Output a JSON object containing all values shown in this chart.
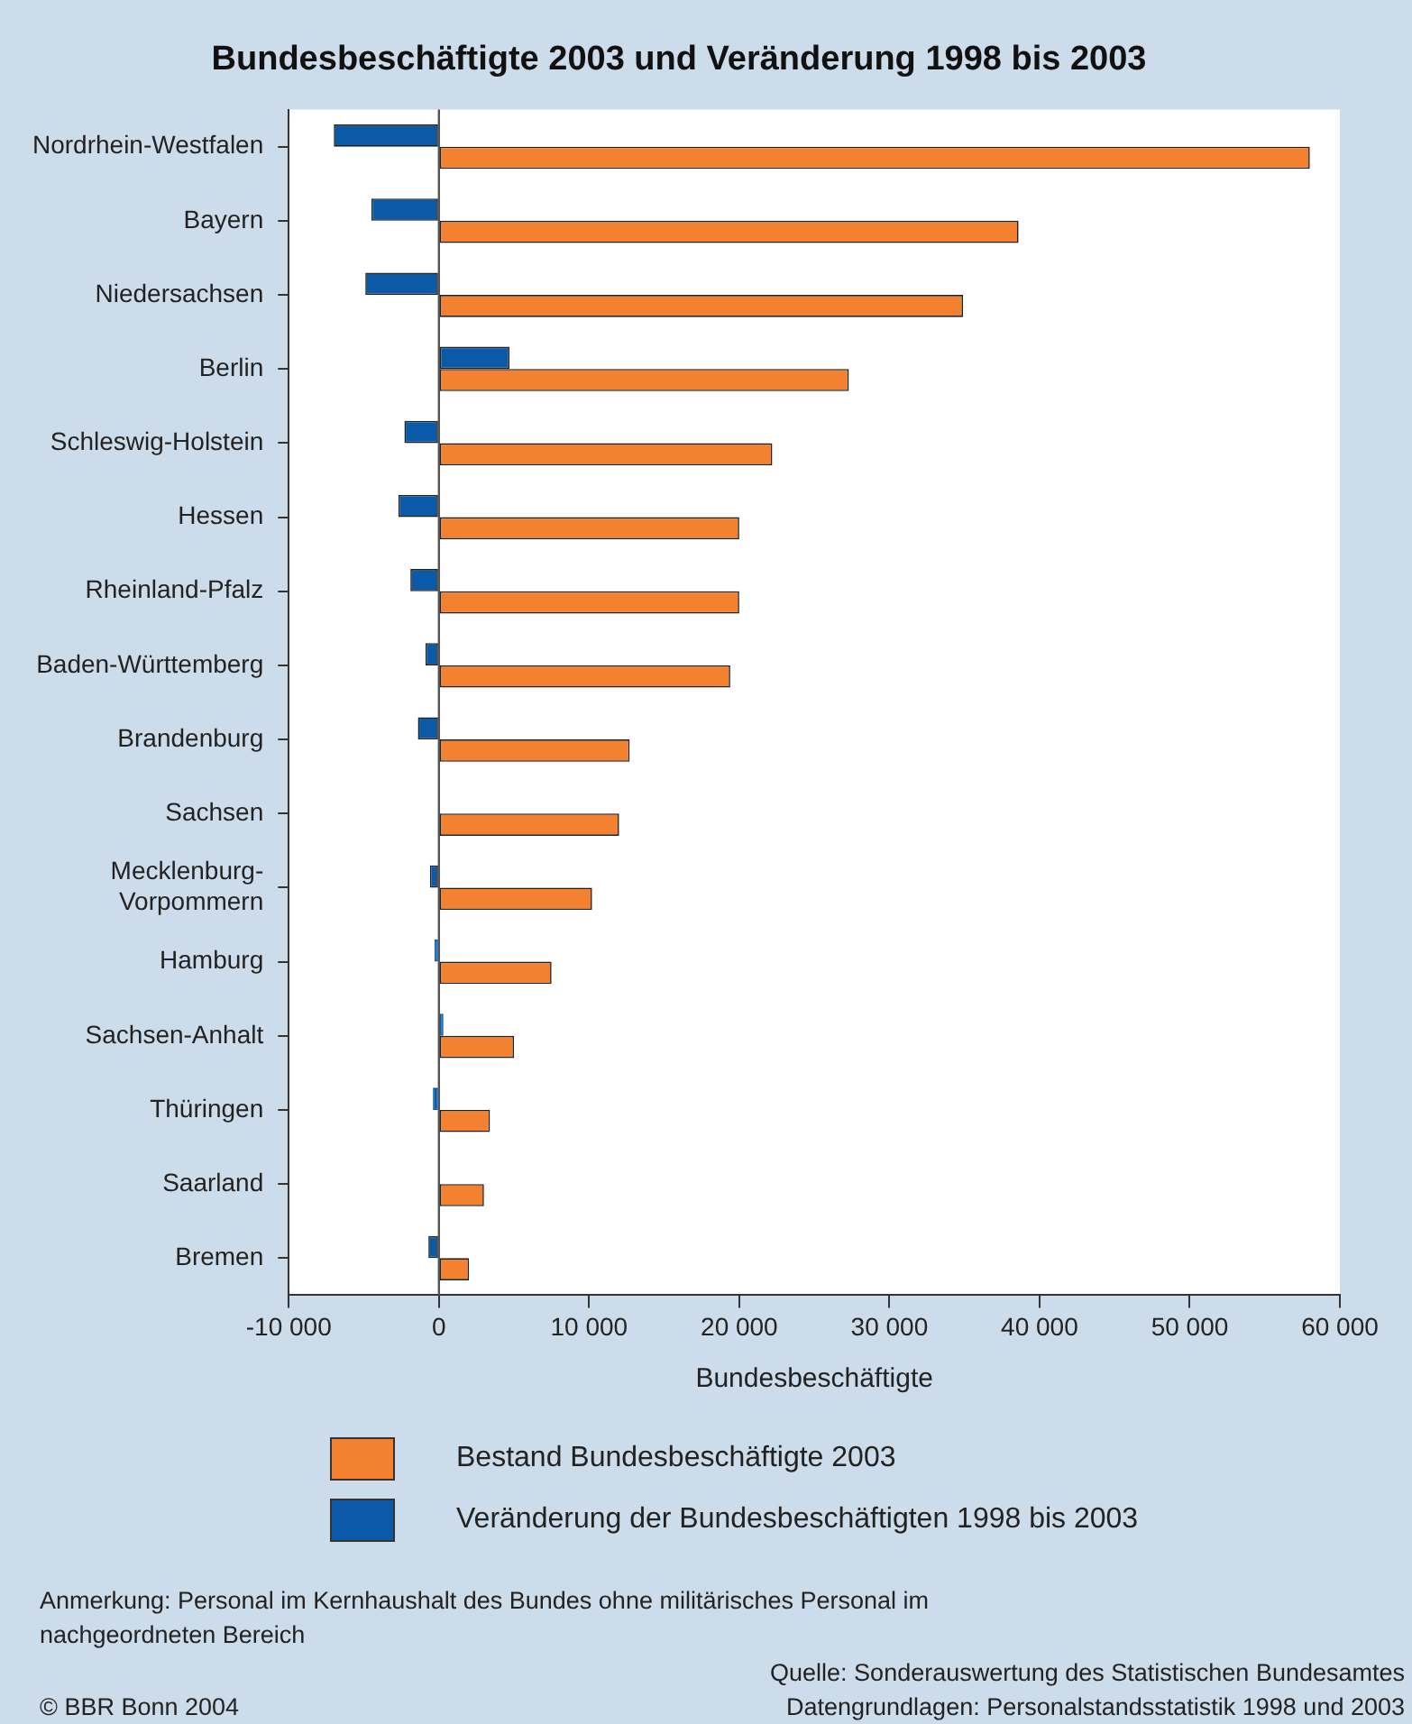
{
  "chart_data": {
    "type": "bar",
    "orientation": "horizontal",
    "title": "Bundesbeschäftigte 2003 und Veränderung 1998 bis 2003",
    "xlabel": "Bundesbeschäftigte",
    "categories": [
      "Nordrhein-Westfalen",
      "Bayern",
      "Niedersachsen",
      "Berlin",
      "Schleswig-Holstein",
      "Hessen",
      "Rheinland-Pfalz",
      "Baden-Württemberg",
      "Brandenburg",
      "Sachsen",
      "Mecklenburg-Vorpommern",
      "Hamburg",
      "Sachsen-Anhalt",
      "Thüringen",
      "Saarland",
      "Bremen"
    ],
    "series": [
      {
        "name": "Bestand Bundesbeschäftigte 2003",
        "color": "#f4812f",
        "values": [
          58000,
          38600,
          34900,
          27300,
          22200,
          20000,
          20000,
          19400,
          12700,
          12000,
          10200,
          7500,
          5000,
          3400,
          3000,
          2000
        ]
      },
      {
        "name": "Veränderung der Bundesbeschäftigten 1998 bis 2003",
        "color": "#0a5aa8",
        "values": [
          -7000,
          -4500,
          -4900,
          4700,
          -2300,
          -2700,
          -1900,
          -900,
          -1400,
          0,
          -600,
          -300,
          300,
          -400,
          0,
          -700
        ]
      }
    ],
    "xlim": [
      -10000,
      60000
    ],
    "xticks": [
      {
        "value": -10000,
        "label": "-10 000"
      },
      0,
      {
        "value": 10000,
        "label": "10 000"
      },
      {
        "value": 20000,
        "label": "20 000"
      },
      {
        "value": 30000,
        "label": "30 000"
      },
      {
        "value": 40000,
        "label": "40 000"
      },
      {
        "value": 50000,
        "label": "50 000"
      },
      {
        "value": 60000,
        "label": "60 000"
      }
    ],
    "ref_lines": [
      {
        "axis": "x",
        "value": 0,
        "color": "#555555"
      }
    ],
    "legend": "bottom",
    "annotations": [
      "Anmerkung: Personal im Kernhaushalt des Bundes ohne militärisches Personal im nachgeordneten Bereich",
      "Quelle: Sonderauswertung des Statistischen Bundesamtes\nDatengrundlagen: Personalstandsstatistik 1998 und 2003",
      "© BBR Bonn 2004"
    ]
  }
}
